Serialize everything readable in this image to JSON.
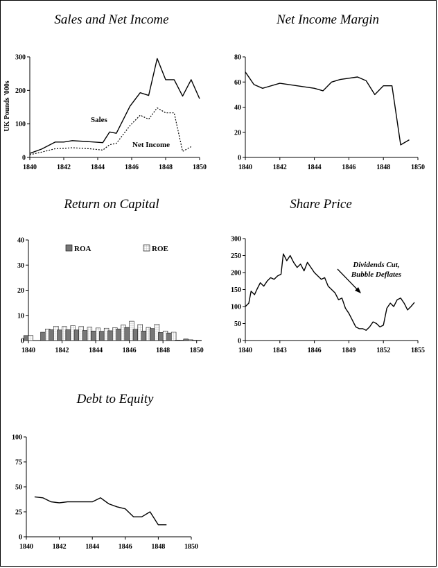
{
  "chart_data": [
    {
      "id": "sales",
      "type": "line",
      "title": "Sales and Net Income",
      "ylabel": "UK Pounds '000s",
      "xlim": [
        1840,
        1850
      ],
      "ylim": [
        0,
        300
      ],
      "xticks": [
        1840,
        1842,
        1844,
        1846,
        1848,
        1850
      ],
      "yticks": [
        0,
        100,
        200,
        300
      ],
      "series": [
        {
          "name": "Sales",
          "style": "solid",
          "x": [
            1840,
            1840.7,
            1841.5,
            1842,
            1842.5,
            1843.5,
            1844.3,
            1844.7,
            1845.1,
            1845.9,
            1846.5,
            1847,
            1847.5,
            1848,
            1848.5,
            1849,
            1849.5,
            1850
          ],
          "y": [
            12,
            25,
            46,
            46,
            50,
            47,
            44,
            76,
            72,
            153,
            193,
            185,
            295,
            232,
            232,
            183,
            232,
            175
          ]
        },
        {
          "name": "Net Income",
          "style": "dotted",
          "x": [
            1840,
            1840.7,
            1841.5,
            1842,
            1842.5,
            1843.5,
            1844.3,
            1844.7,
            1845.1,
            1845.9,
            1846.5,
            1847,
            1847.5,
            1848,
            1848.5,
            1849,
            1849.5
          ],
          "y": [
            8,
            16,
            26,
            27,
            29,
            26,
            22,
            38,
            42,
            95,
            126,
            114,
            148,
            133,
            133,
            18,
            32
          ]
        }
      ],
      "annotations": [
        "Sales",
        "Net Income"
      ]
    },
    {
      "id": "margin",
      "type": "line",
      "title": "Net Income Margin",
      "xlim": [
        1840,
        1850
      ],
      "ylim": [
        0,
        80
      ],
      "xticks": [
        1840,
        1842,
        1844,
        1846,
        1848,
        1850
      ],
      "yticks": [
        0,
        20,
        40,
        60,
        80
      ],
      "series": [
        {
          "name": "",
          "style": "solid",
          "x": [
            1840,
            1840.5,
            1841,
            1842,
            1843,
            1844,
            1844.5,
            1845,
            1845.5,
            1846,
            1846.5,
            1847,
            1847.5,
            1848,
            1848.5,
            1849,
            1849.5
          ],
          "y": [
            68,
            58,
            55,
            59,
            57,
            55,
            53,
            60,
            62,
            63,
            64,
            61,
            50,
            57,
            57,
            10,
            14
          ]
        }
      ]
    },
    {
      "id": "roc",
      "type": "bar",
      "title": "Return on Capital",
      "xlim": [
        1840,
        1850.3
      ],
      "ylim": [
        0,
        40
      ],
      "xticks": [
        1840,
        1842,
        1844,
        1846,
        1848,
        1850
      ],
      "yticks": [
        0,
        10,
        20,
        30,
        40
      ],
      "x": [
        1840,
        1841,
        1841.5,
        1842,
        1842.5,
        1843,
        1843.5,
        1844,
        1844.5,
        1845,
        1845.5,
        1846,
        1846.5,
        1847,
        1847.5,
        1848,
        1848.5,
        1849,
        1849.5,
        1850
      ],
      "series": [
        {
          "name": "ROA",
          "values": [
            2,
            3.3,
            4.3,
            4.2,
            4.3,
            4.2,
            4.0,
            3.8,
            3.7,
            3.9,
            4.6,
            5.2,
            4.5,
            3.8,
            4.8,
            3.2,
            3.0,
            0.2,
            0.6,
            0.1
          ]
        },
        {
          "name": "ROE",
          "values": [
            2,
            4.6,
            5.7,
            5.6,
            5.9,
            5.6,
            5.3,
            5.0,
            4.9,
            5.1,
            6.2,
            7.7,
            6.4,
            5.2,
            6.5,
            3.8,
            3.3,
            0.2,
            0.3,
            0.1
          ]
        }
      ],
      "legend": [
        "ROA",
        "ROE"
      ]
    },
    {
      "id": "share",
      "type": "line",
      "title": "Share Price",
      "xlim": [
        1840,
        1855
      ],
      "ylim": [
        0,
        300
      ],
      "xticks": [
        1840,
        1843,
        1846,
        1849,
        1852,
        1855
      ],
      "yticks": [
        0,
        50,
        100,
        150,
        200,
        250,
        300
      ],
      "series": [
        {
          "name": "",
          "style": "solid",
          "x": [
            1840,
            1840.3,
            1840.5,
            1840.8,
            1841,
            1841.3,
            1841.6,
            1841.9,
            1842.2,
            1842.5,
            1842.8,
            1843.1,
            1843.3,
            1843.6,
            1843.9,
            1844.2,
            1844.5,
            1844.8,
            1845.1,
            1845.4,
            1845.7,
            1846.0,
            1846.3,
            1846.6,
            1846.9,
            1847.2,
            1847.5,
            1847.8,
            1848.1,
            1848.4,
            1848.7,
            1849.0,
            1849.3,
            1849.6,
            1849.9,
            1850.2,
            1850.5,
            1850.8,
            1851.1,
            1851.4,
            1851.7,
            1852.0,
            1852.3,
            1852.6,
            1852.9,
            1853.2,
            1853.5,
            1853.8,
            1854.1,
            1854.4,
            1854.7
          ],
          "y": [
            100,
            110,
            145,
            135,
            150,
            170,
            160,
            175,
            185,
            180,
            190,
            195,
            255,
            235,
            250,
            230,
            215,
            225,
            205,
            230,
            215,
            200,
            190,
            180,
            185,
            160,
            150,
            140,
            120,
            125,
            95,
            80,
            60,
            40,
            35,
            35,
            30,
            40,
            55,
            50,
            40,
            45,
            95,
            110,
            100,
            120,
            125,
            110,
            90,
            100,
            112
          ]
        }
      ],
      "annotations": [
        "Dividends Cut,",
        "Bubble Deflates"
      ]
    },
    {
      "id": "debt",
      "type": "line",
      "title": "Debt to Equity",
      "xlim": [
        1840,
        1850
      ],
      "ylim": [
        0,
        100
      ],
      "xticks": [
        1840,
        1842,
        1844,
        1846,
        1848,
        1850
      ],
      "yticks": [
        0,
        25,
        50,
        75,
        100
      ],
      "series": [
        {
          "name": "",
          "style": "solid",
          "x": [
            1840.5,
            1841,
            1841.5,
            1842,
            1842.5,
            1843,
            1843.5,
            1844,
            1844.5,
            1845,
            1845.5,
            1846,
            1846.5,
            1847,
            1847.5,
            1848,
            1848.5
          ],
          "y": [
            40,
            39,
            35,
            34,
            35,
            35,
            35,
            35,
            39,
            33,
            30,
            28,
            20,
            20,
            25,
            12,
            12
          ]
        }
      ]
    }
  ],
  "colors": {
    "axis": "#000000",
    "line": "#000000",
    "roa_fill": "#777777",
    "roe_fill": "#ffffff"
  }
}
